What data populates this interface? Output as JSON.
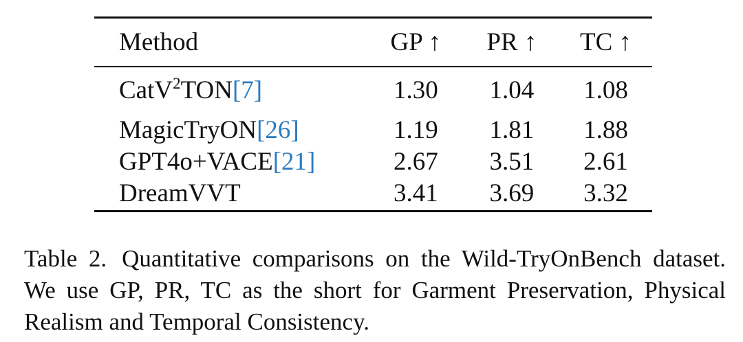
{
  "table": {
    "headers": [
      "Method",
      "GP ↑",
      "PR ↑",
      "TC ↑"
    ],
    "rows": [
      {
        "method": "CatV",
        "method_sup": "2",
        "method_suffix": "TON",
        "cite": "[7]",
        "gp": "1.30",
        "pr": "1.04",
        "tc": "1.08"
      },
      {
        "method": "MagicTryON",
        "cite": "[26]",
        "gp": "1.19",
        "pr": "1.81",
        "tc": "1.88"
      },
      {
        "method": "GPT4o+VACE",
        "cite": "[21]",
        "gp": "2.67",
        "pr": "3.51",
        "tc": "2.61"
      },
      {
        "method": "DreamVVT",
        "cite": "",
        "gp": "3.41",
        "pr": "3.69",
        "tc": "3.32"
      }
    ]
  },
  "caption": {
    "label": "Table 2.",
    "text": "Quantitative comparisons on the Wild-TryOnBench dataset. We use GP, PR, TC as the short for Garment Preservation, Physical Realism and Temporal Consistency."
  },
  "colors": {
    "citation": "#2b7bbf",
    "text": "#111111"
  }
}
